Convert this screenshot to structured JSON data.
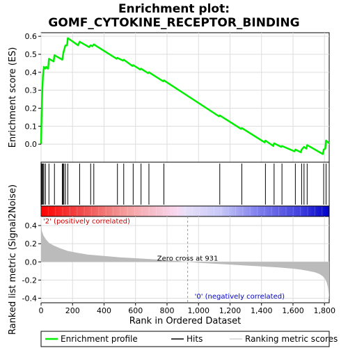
{
  "chart_data": {
    "type": "line",
    "title_line1": "Enrichment plot:",
    "title_line2": "GOMF_CYTOKINE_RECEPTOR_BINDING",
    "xlabel": "Rank in Ordered Dataset",
    "ylabel_top": "Enrichment score (ES)",
    "ylabel_bottom": "Ranked list metric (Signal2Noise)",
    "xlim": [
      0,
      1830
    ],
    "es_ylim": [
      -0.1,
      0.62
    ],
    "metric_ylim": [
      -0.45,
      0.5
    ],
    "x_ticks": [
      0,
      200,
      400,
      600,
      800,
      1000,
      1200,
      1400,
      1600,
      1800
    ],
    "x_tick_labels": [
      "0",
      "200",
      "400",
      "600",
      "800",
      "1,000",
      "1,200",
      "1,400",
      "1,600",
      "1,800"
    ],
    "es_ticks": [
      0.0,
      0.1,
      0.2,
      0.3,
      0.4,
      0.5,
      0.6
    ],
    "es_tick_labels": [
      "0.0",
      "0.1",
      "0.2",
      "0.3",
      "0.4",
      "0.5",
      "0.6"
    ],
    "metric_ticks": [
      -0.4,
      -0.2,
      0.0,
      0.2,
      0.4
    ],
    "metric_tick_labels": [
      "-0.4",
      "-0.2",
      "0.0",
      "0.2",
      "0.4"
    ],
    "es_curve": {
      "x": [
        0,
        3,
        8,
        12,
        18,
        28,
        32,
        45,
        50,
        80,
        85,
        135,
        140,
        145,
        155,
        165,
        170,
        235,
        245,
        305,
        315,
        325,
        335,
        480,
        485,
        520,
        525,
        580,
        585,
        630,
        635,
        680,
        685,
        775,
        780,
        1130,
        1135,
        1270,
        1275,
        1420,
        1425,
        1475,
        1480,
        1525,
        1530,
        1610,
        1615,
        1650,
        1655,
        1665,
        1670,
        1685,
        1690,
        1790,
        1795,
        1805,
        1810,
        1830
      ],
      "y": [
        0.0,
        0.15,
        0.3,
        0.38,
        0.43,
        0.42,
        0.43,
        0.42,
        0.475,
        0.46,
        0.495,
        0.47,
        0.5,
        0.52,
        0.55,
        0.55,
        0.59,
        0.55,
        0.57,
        0.54,
        0.55,
        0.545,
        0.555,
        0.475,
        0.48,
        0.465,
        0.47,
        0.435,
        0.44,
        0.415,
        0.42,
        0.395,
        0.4,
        0.35,
        0.355,
        0.155,
        0.16,
        0.085,
        0.09,
        0.01,
        0.02,
        -0.01,
        0.005,
        -0.015,
        -0.01,
        -0.04,
        -0.03,
        -0.045,
        -0.03,
        -0.02,
        -0.015,
        -0.025,
        -0.005,
        -0.055,
        -0.03,
        -0.025,
        0.02,
        0.005
      ]
    },
    "hits": [
      3,
      8,
      12,
      18,
      28,
      50,
      85,
      135,
      140,
      145,
      155,
      170,
      245,
      315,
      335,
      485,
      525,
      585,
      635,
      685,
      780,
      1135,
      1275,
      1425,
      1480,
      1530,
      1615,
      1655,
      1670,
      1690,
      1795,
      1810
    ],
    "metric_curve": {
      "x": [
        0,
        5,
        15,
        30,
        50,
        80,
        120,
        170,
        230,
        300,
        400,
        500,
        600,
        700,
        800,
        900,
        931,
        1000,
        1100,
        1200,
        1300,
        1400,
        1500,
        1600,
        1650,
        1700,
        1740,
        1770,
        1790,
        1805,
        1815,
        1822,
        1826,
        1830
      ],
      "y": [
        0.43,
        0.34,
        0.29,
        0.25,
        0.21,
        0.18,
        0.15,
        0.12,
        0.1,
        0.08,
        0.065,
        0.05,
        0.04,
        0.03,
        0.02,
        0.005,
        0.0,
        -0.01,
        -0.02,
        -0.03,
        -0.04,
        -0.05,
        -0.06,
        -0.075,
        -0.085,
        -0.1,
        -0.115,
        -0.135,
        -0.16,
        -0.19,
        -0.23,
        -0.28,
        -0.34,
        -0.41
      ]
    },
    "zero_cross_label": "Zero cross at 931",
    "zero_cross_x": 931,
    "positive_label": "'2' (positively correlated)",
    "negative_label": "'0' (negatively correlated)",
    "legend": [
      {
        "label": "Enrichment profile",
        "color": "#00ee00"
      },
      {
        "label": "Hits",
        "color": "#000000"
      },
      {
        "label": "Ranking metric scores",
        "color": "#bbbbbb"
      }
    ],
    "colors": {
      "es_line": "#00ee00",
      "hits": "#000000",
      "metric_fill": "#bbbbbb",
      "grid": "#dddddd"
    }
  }
}
